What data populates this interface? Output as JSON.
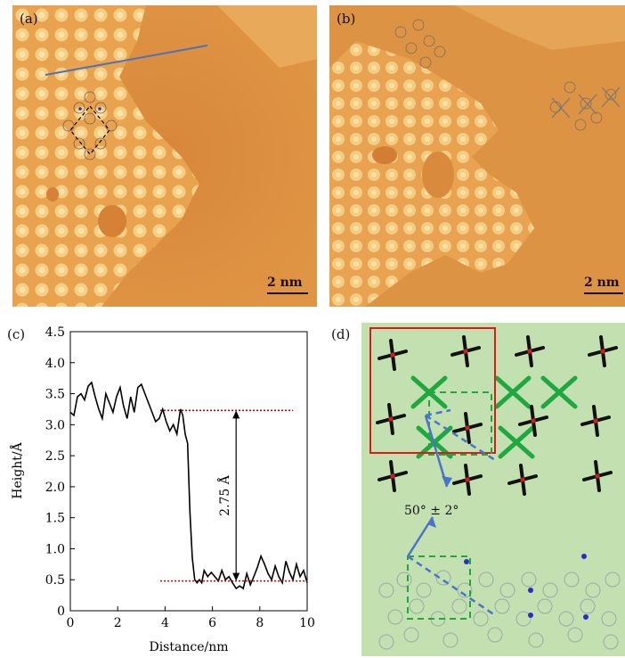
{
  "panels": {
    "a": {
      "label": "(a)",
      "scalebar": "2 nm"
    },
    "b": {
      "label": "(b)",
      "scalebar": "2 nm"
    },
    "c": {
      "label": "(c)"
    },
    "d": {
      "label": "(d)",
      "angle_label": "50° ± 2°"
    }
  },
  "chart_data": {
    "type": "line",
    "title": "",
    "xlabel": "Distance/nm",
    "ylabel": "Height/Å",
    "xlim": [
      0,
      10
    ],
    "ylim": [
      0,
      4.5
    ],
    "xticks": [
      0,
      2,
      4,
      6,
      8,
      10
    ],
    "yticks": [
      0,
      0.5,
      1.0,
      1.5,
      2.0,
      2.5,
      3.0,
      3.5,
      4.0,
      4.5
    ],
    "ytick_labels": [
      "0",
      "0.5",
      "1.0",
      "1.5",
      "2.0",
      "2.5",
      "3.0",
      "3.5",
      "4.0",
      "4.5"
    ],
    "series": [
      {
        "color": "#000000",
        "x": [
          0,
          0.15,
          0.3,
          0.45,
          0.6,
          0.75,
          0.9,
          1.05,
          1.2,
          1.35,
          1.5,
          1.65,
          1.8,
          1.95,
          2.1,
          2.25,
          2.4,
          2.55,
          2.7,
          2.85,
          3.0,
          3.15,
          3.3,
          3.45,
          3.6,
          3.75,
          3.9,
          4.05,
          4.2,
          4.35,
          4.5,
          4.65,
          4.75,
          4.85,
          4.95,
          5.05,
          5.15,
          5.25,
          5.35,
          5.45,
          5.55,
          5.65,
          5.8,
          5.95,
          6.1,
          6.25,
          6.4,
          6.55,
          6.7,
          6.85,
          7.0,
          7.15,
          7.3,
          7.45,
          7.6,
          7.75,
          7.9,
          8.05,
          8.2,
          8.35,
          8.5,
          8.65,
          8.8,
          8.95,
          9.1,
          9.25,
          9.4,
          9.55,
          9.7,
          9.85,
          10.0
        ],
        "y": [
          3.2,
          3.15,
          3.45,
          3.5,
          3.4,
          3.62,
          3.68,
          3.45,
          3.25,
          3.1,
          3.5,
          3.35,
          3.2,
          3.45,
          3.6,
          3.3,
          3.1,
          3.45,
          3.2,
          3.6,
          3.65,
          3.5,
          3.35,
          3.2,
          3.05,
          3.1,
          3.25,
          3.05,
          2.9,
          3.0,
          2.85,
          3.25,
          3.15,
          2.85,
          2.7,
          1.6,
          0.85,
          0.5,
          0.45,
          0.5,
          0.45,
          0.65,
          0.55,
          0.62,
          0.55,
          0.48,
          0.65,
          0.5,
          0.55,
          0.45,
          0.36,
          0.4,
          0.36,
          0.6,
          0.42,
          0.55,
          0.7,
          0.88,
          0.75,
          0.6,
          0.5,
          0.72,
          0.55,
          0.45,
          0.8,
          0.62,
          0.5,
          0.75,
          0.55,
          0.65,
          0.45
        ]
      }
    ],
    "reference_lines": [
      {
        "y": 3.23,
        "x_from": 3.8,
        "x_to": 9.4,
        "color": "#b00000",
        "style": "dotted"
      },
      {
        "y": 0.48,
        "x_from": 3.8,
        "x_to": 10.0,
        "color": "#b00000",
        "style": "dotted"
      }
    ],
    "annotation": {
      "text": "2.75 Å",
      "x": 7.0,
      "y_from": 0.48,
      "y_to": 3.23
    }
  }
}
